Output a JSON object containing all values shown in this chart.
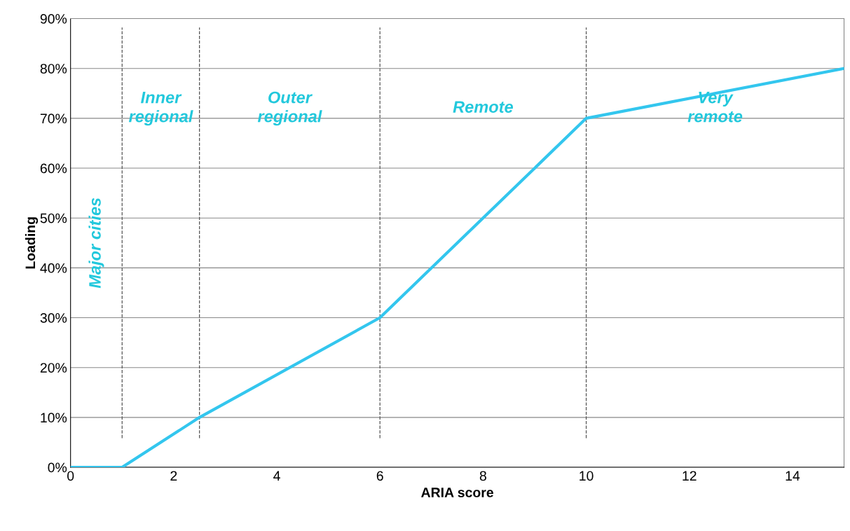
{
  "chart_data": {
    "type": "line",
    "xlabel": "ARIA score",
    "ylabel": "Loading",
    "x": [
      0,
      1,
      2.5,
      6,
      10,
      15
    ],
    "series": [
      {
        "color": "#33c6ee",
        "values": [
          0,
          0,
          10,
          30,
          70,
          80
        ]
      }
    ],
    "xlim": [
      0,
      15
    ],
    "xticks": [
      0,
      2,
      4,
      6,
      8,
      10,
      12,
      14
    ],
    "ylim": [
      0,
      90
    ],
    "yticks": [
      {
        "value": 0,
        "label": "0%"
      },
      {
        "value": 10,
        "label": "10%"
      },
      {
        "value": 20,
        "label": "20%"
      },
      {
        "value": 30,
        "label": "30%"
      },
      {
        "value": 40,
        "label": "40%"
      },
      {
        "value": 50,
        "label": "50%"
      },
      {
        "value": 60,
        "label": "60%"
      },
      {
        "value": 70,
        "label": "70%"
      },
      {
        "value": 80,
        "label": "80%"
      },
      {
        "value": 90,
        "label": "90%"
      }
    ],
    "grid": "y",
    "marker": "none",
    "line_style": "solid",
    "ref_lines": [
      {
        "axis": "x",
        "value": 1,
        "color": "#555555",
        "line_style": "dashed"
      },
      {
        "axis": "x",
        "value": 2.5,
        "color": "#555555",
        "line_style": "dashed"
      },
      {
        "axis": "x",
        "value": 6,
        "color": "#555555",
        "line_style": "dashed"
      },
      {
        "axis": "x",
        "value": 10,
        "color": "#555555",
        "line_style": "dashed"
      }
    ],
    "annotations": [
      "Major cities",
      "Inner\nregional",
      "Outer\nregional",
      "Remote",
      "Very\nremote"
    ]
  }
}
